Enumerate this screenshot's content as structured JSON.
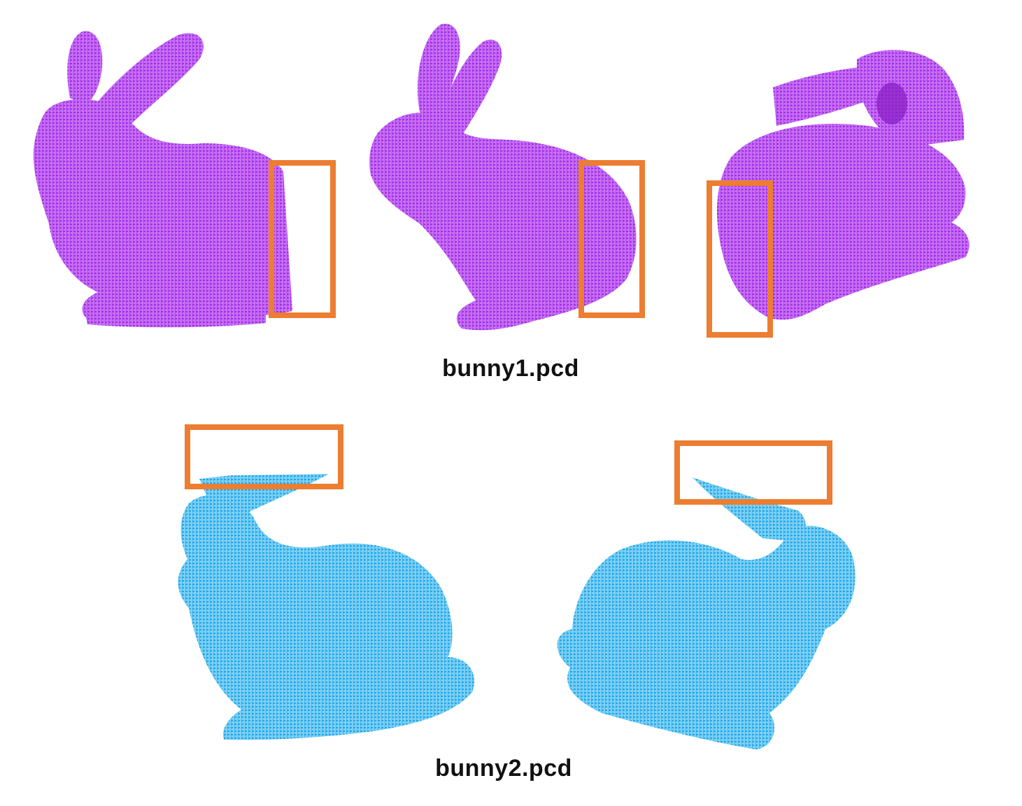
{
  "colors": {
    "background": "#ffffff",
    "bunny1_points": "#b63bef",
    "bunny2_points": "#2fb4ee",
    "highlight_box": "#ed7d31"
  },
  "captions": {
    "bunny1": "bunny1.pcd",
    "bunny2": "bunny2.pcd"
  },
  "views": {
    "bunny1": [
      "left-side view",
      "three-quarter view",
      "rear view"
    ],
    "bunny2": [
      "left-side view",
      "right-side view"
    ]
  }
}
